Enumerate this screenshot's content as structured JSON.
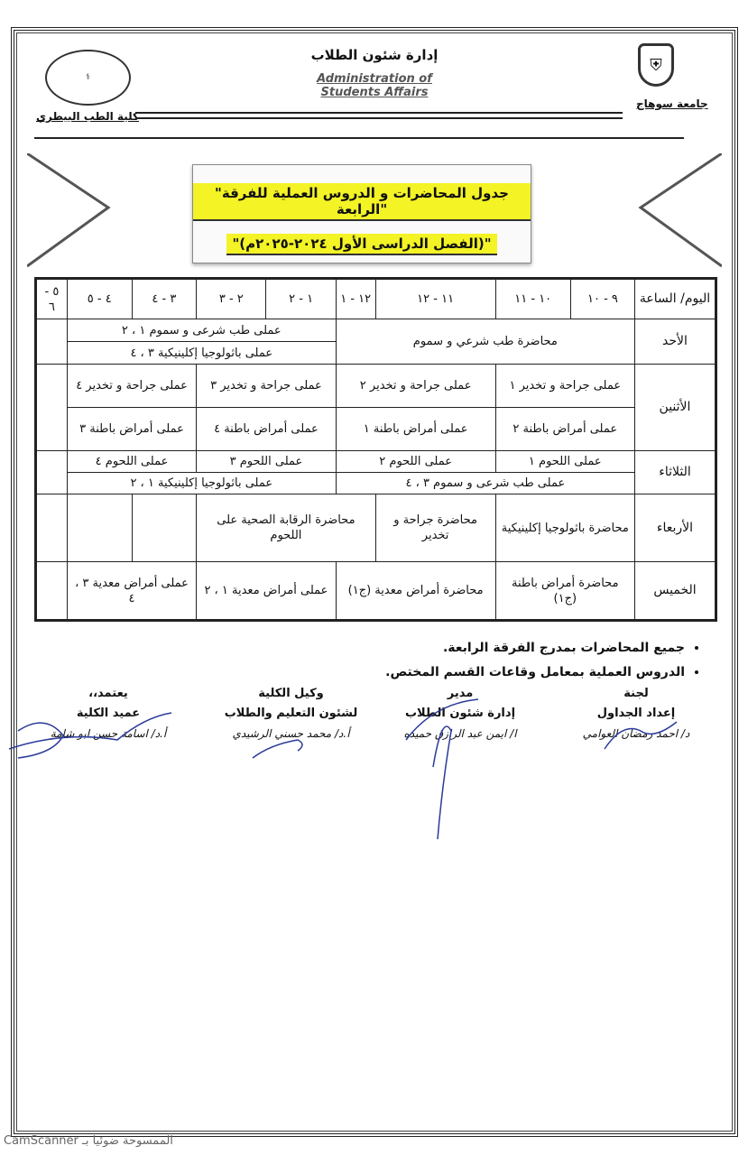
{
  "header": {
    "dept_ar": "إدارة شئون الطلاب",
    "dept_en": "Administration of Students Affairs",
    "university": "جامعة سوهاج",
    "faculty": "كلية الطب البيطري"
  },
  "title": {
    "line1": "\"جدول المحاضرات و الدروس العملية للفرقة الرابعة\"",
    "line2": "\"(الفصل الدراسى الأول ٢٠٢٤-٢٠٢٥م)\""
  },
  "table": {
    "corner": "اليوم/ الساعة",
    "times": [
      "٩ - ١٠",
      "١٠ - ١١",
      "١١ - ١٢",
      "١٢ - ١",
      "١ - ٢",
      "٢ - ٣",
      "٣ - ٤",
      "٤ - ٥",
      "٥ - ٦"
    ],
    "days": {
      "sun": {
        "name": "الأحد",
        "lecture": "محاضرة طب شرعي و سموم",
        "p1": "عملى طب شرعى و سموم ١ ، ٢",
        "p2": "عملى باثولوجيا إكلينيكية ٣ ، ٤"
      },
      "mon": {
        "name": "الأثنين",
        "a": [
          "عملى جراحة و تخدير ١",
          "عملى جراحة و تخدير ٢",
          "عملى جراحة و تخدير ٣",
          "عملى جراحة و تخدير ٤"
        ],
        "b": [
          "عملى أمراض باطنة ٢",
          "عملى أمراض باطنة ١",
          "عملى أمراض باطنة ٤",
          "عملى أمراض باطنة ٣"
        ]
      },
      "tue": {
        "name": "الثلاثاء",
        "a": [
          "عملى اللحوم ١",
          "عملى اللحوم ٢",
          "عملى اللحوم ٣",
          "عملى اللحوم ٤"
        ],
        "b": [
          "عملى طب شرعى و سموم ٣ ، ٤",
          "عملى باثولوجيا إكلينيكية ١ ، ٢"
        ]
      },
      "wed": {
        "name": "الأربعاء",
        "c": [
          "محاضرة باثولوجيا إكلينيكية",
          "محاضرة جراحة و تخدير",
          "محاضرة الرقابة الصحية على اللحوم"
        ]
      },
      "thu": {
        "name": "الخميس",
        "c": [
          "محاضرة أمراض باطنة (ج١)",
          "محاضرة أمراض معدية (ج١)",
          "عملى أمراض معدية ١ ، ٢",
          "عملى أمراض معدية ٣ ، ٤"
        ]
      }
    }
  },
  "notes": [
    "جميع المحاضرات بمدرج الفرقة الرابعة.",
    "الدروس العملية بمعامل وقاعات القسم المختص."
  ],
  "signatures": [
    {
      "t1": "لجنة",
      "t2": "إعداد الجداول",
      "name": "د/ احمد رمضان العوامي"
    },
    {
      "t1": "مدير",
      "t2": "إدارة شئون الطلاب",
      "name": "ا/ ايمن عبد الرازق حميده"
    },
    {
      "t1": "وكيل الكلية",
      "t2": "لشئون التعليم والطلاب",
      "name": "أ.د/ محمد حسني الرشيدي"
    },
    {
      "t1": "يعتمد،،",
      "t2": "عميد الكلية",
      "name": "أ.د/ اسامة حسن ابو شامة"
    }
  ],
  "scanner": "الممسوحة ضوئيا بـ CamScanner",
  "colors": {
    "highlight": "#f3f326"
  }
}
